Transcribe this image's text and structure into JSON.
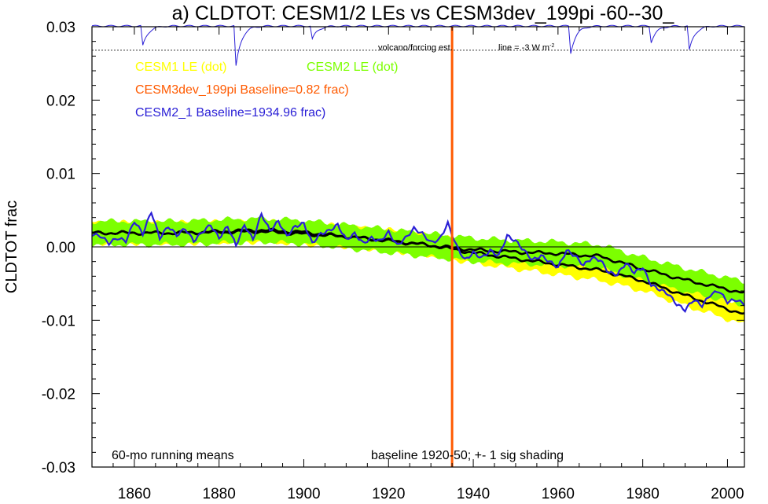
{
  "chart_data": {
    "type": "line",
    "title": "a) CLDTOT: CESM1/2 LEs vs CESM3dev_199pi -60--30_",
    "ylabel": "CLDTOT frac",
    "xlabel": "",
    "xlim": [
      1850,
      2004
    ],
    "ylim": [
      -0.03,
      0.03
    ],
    "xticks": [
      1860,
      1880,
      1900,
      1920,
      1940,
      1960,
      1980,
      2000
    ],
    "xtick_labels": [
      "1860",
      "1880",
      "1900",
      "1920",
      "1940",
      "1960",
      "1980",
      "2000"
    ],
    "yticks": [
      -0.03,
      -0.02,
      -0.01,
      0.0,
      0.01,
      0.02,
      0.03
    ],
    "ytick_labels": [
      "-0.03",
      "-0.02",
      "-0.01",
      "0.00",
      "0.01",
      "0.02",
      "0.03"
    ],
    "grid": false,
    "legend": {
      "placement": "top-left",
      "entries": [
        {
          "label": "CESM1 LE (dot)",
          "color": "#ffff00"
        },
        {
          "label": "CESM2 LE (dot)",
          "color": "#7cff00"
        },
        {
          "label": "CESM3dev_199pi Baseline=0.82 frac)",
          "color": "#ff5a00"
        },
        {
          "label": "CESM2_1 Baseline=1934.96 frac)",
          "color": "#2a1fd6"
        }
      ]
    },
    "annotations": {
      "volcano": "volcano/forcing est.",
      "line_note": "line = -3 W m",
      "line_note_sup": "-2",
      "bottom_left": "60-mo running means",
      "bottom_center": "baseline 1920-50; +- 1 sig shading"
    },
    "vertical_line": {
      "x": 1935,
      "color": "#ff5a00"
    },
    "volcano_reference_y": 0.0268,
    "volcano_dips": [
      {
        "year": 1862,
        "depth": 0.0027
      },
      {
        "year": 1884,
        "depth": 0.0055
      },
      {
        "year": 1902,
        "depth": 0.0018
      },
      {
        "year": 1963,
        "depth": 0.0037
      },
      {
        "year": 1982,
        "depth": 0.0022
      },
      {
        "year": 1991,
        "depth": 0.0033
      }
    ],
    "series": [
      {
        "name": "CESM1 LE",
        "x": [
          1850,
          1870,
          1890,
          1910,
          1920,
          1930,
          1940,
          1950,
          1960,
          1970,
          1980,
          1990,
          2004
        ],
        "values": [
          0.0019,
          0.0019,
          0.0021,
          0.0014,
          0.0009,
          0.0002,
          -0.0008,
          -0.0016,
          -0.0024,
          -0.0032,
          -0.0046,
          -0.0066,
          -0.0092
        ],
        "sigma": 0.0014,
        "band_color": "#ffff00"
      },
      {
        "name": "CESM2 LE",
        "x": [
          1850,
          1870,
          1890,
          1900,
          1910,
          1920,
          1930,
          1940,
          1950,
          1960,
          1970,
          1980,
          1990,
          2004
        ],
        "values": [
          0.0019,
          0.0019,
          0.0023,
          0.002,
          0.0014,
          0.0008,
          0.0002,
          -0.0004,
          -0.0007,
          -0.0009,
          -0.0013,
          -0.003,
          -0.0045,
          -0.0063
        ],
        "sigma": 0.0016,
        "band_color": "#7cff00"
      },
      {
        "name": "CESM2_1",
        "color": "#2a1fd6",
        "x": [
          1850,
          1852,
          1854,
          1856,
          1858,
          1860,
          1862,
          1864,
          1866,
          1868,
          1870,
          1872,
          1874,
          1876,
          1878,
          1880,
          1882,
          1884,
          1886,
          1888,
          1890,
          1892,
          1894,
          1896,
          1898,
          1900,
          1902,
          1904,
          1906,
          1908,
          1910,
          1912,
          1914,
          1916,
          1918,
          1920,
          1922,
          1924,
          1926,
          1928,
          1930,
          1932,
          1934,
          1936,
          1938,
          1940,
          1942,
          1944,
          1946,
          1948,
          1950,
          1952,
          1954,
          1956,
          1958,
          1960,
          1962,
          1964,
          1966,
          1968,
          1970,
          1972,
          1974,
          1976,
          1978,
          1980,
          1982,
          1984,
          1986,
          1988,
          1990,
          1992,
          1994,
          1996,
          1998,
          2000,
          2002,
          2004
        ],
        "values": [
          0.0017,
          0.0015,
          0.0005,
          0.0012,
          0.0008,
          0.0035,
          0.0018,
          0.0048,
          0.0012,
          0.0028,
          0.0016,
          0.0025,
          0.0008,
          0.002,
          0.003,
          0.0012,
          0.0028,
          0.0002,
          0.003,
          0.001,
          0.0045,
          0.0022,
          0.0035,
          0.0015,
          0.0028,
          0.0032,
          0.0005,
          0.0018,
          0.0022,
          0.003,
          0.001,
          0.0018,
          0.0005,
          0.0012,
          0.0008,
          0.002,
          0.0002,
          0.0012,
          0.0025,
          0.0018,
          0.0006,
          0.001,
          0.0032,
          0.0002,
          -0.0018,
          -0.0008,
          -0.0015,
          -0.0005,
          -0.0012,
          0.0015,
          0.0008,
          -0.0005,
          -0.0018,
          -0.0012,
          -0.002,
          -0.0028,
          -0.0005,
          -0.0012,
          -0.0025,
          -0.0015,
          -0.0018,
          -0.0035,
          -0.0038,
          -0.0022,
          -0.0035,
          -0.0028,
          -0.0052,
          -0.0058,
          -0.0064,
          -0.0078,
          -0.0086,
          -0.0072,
          -0.008,
          -0.0065,
          -0.006,
          -0.0075,
          -0.0072,
          -0.0078
        ]
      },
      {
        "name": "CESM3dev_199pi",
        "color": "#ff5a00",
        "x": [
          1935
        ],
        "values": [
          0.0
        ]
      }
    ]
  }
}
